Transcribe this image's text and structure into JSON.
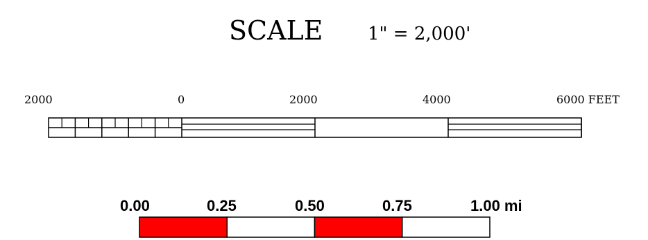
{
  "title": {
    "word": "SCALE",
    "ratio": "1\" = 2,000'"
  },
  "feet_bar": {
    "labels": [
      "2000",
      "0",
      "2000",
      "4000",
      "6000 FEET"
    ],
    "unit": "FEET",
    "range_feet": [
      -2000,
      6000
    ],
    "major_ticks_feet": [
      0,
      2000,
      4000,
      6000
    ],
    "minor_divisions_left": 5
  },
  "mile_bar": {
    "labels": [
      "0.00",
      "0.25",
      "0.50",
      "0.75",
      "1.00 mi"
    ],
    "range_miles": [
      0,
      1
    ],
    "segments": [
      {
        "from": 0.0,
        "to": 0.25,
        "fill": "#ff0000"
      },
      {
        "from": 0.25,
        "to": 0.5,
        "fill": "#ffffff"
      },
      {
        "from": 0.5,
        "to": 0.75,
        "fill": "#ff0000"
      },
      {
        "from": 0.75,
        "to": 1.0,
        "fill": "#ffffff"
      }
    ]
  },
  "colors": {
    "accent": "#ff0000",
    "line": "#000000",
    "background": "#ffffff"
  }
}
